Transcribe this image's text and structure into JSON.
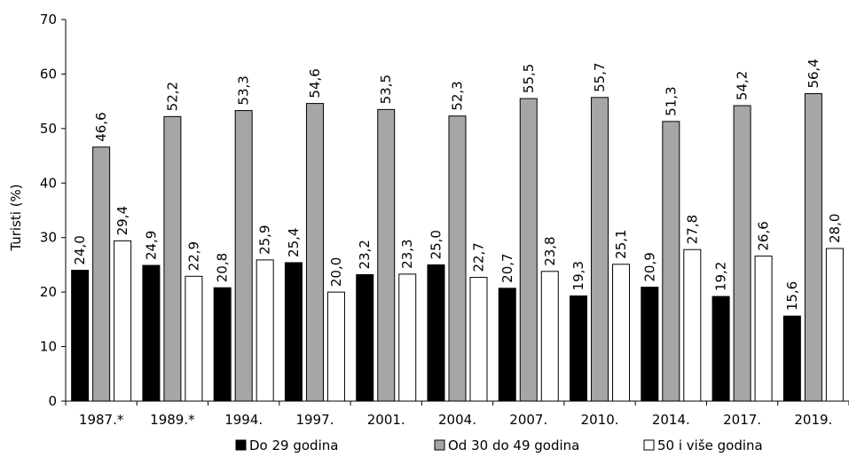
{
  "chart_data": {
    "type": "bar",
    "title": "",
    "xlabel": "",
    "ylabel": "Turisti (%)",
    "ylim": [
      0,
      70
    ],
    "ytick_step": 10,
    "grid": false,
    "legend_position": "bottom",
    "categories": [
      "1987.*",
      "1989.*",
      "1994.",
      "1997.",
      "2001.",
      "2004.",
      "2007.",
      "2010.",
      "2014.",
      "2017.",
      "2019."
    ],
    "series": [
      {
        "name": "Do 29 godina",
        "color": "#000000",
        "values": [
          24.0,
          24.9,
          20.8,
          25.4,
          23.2,
          25.0,
          20.7,
          19.3,
          20.9,
          19.2,
          15.6
        ],
        "labels": [
          "24,0",
          "24,9",
          "20,8",
          "25,4",
          "23,2",
          "25,0",
          "20,7",
          "19,3",
          "20,9",
          "19,2",
          "15,6"
        ]
      },
      {
        "name": "Od 30 do 49 godina",
        "color": "#a6a6a6",
        "values": [
          46.6,
          52.2,
          53.3,
          54.6,
          53.5,
          52.3,
          55.5,
          55.7,
          51.3,
          54.2,
          56.4
        ],
        "labels": [
          "46,6",
          "52,2",
          "53,3",
          "54,6",
          "53,5",
          "52,3",
          "55,5",
          "55,7",
          "51,3",
          "54,2",
          "56,4"
        ]
      },
      {
        "name": "50 i više godina",
        "color": "#ffffff",
        "values": [
          29.4,
          22.9,
          25.9,
          20.0,
          23.3,
          22.7,
          23.8,
          25.1,
          27.8,
          26.6,
          28.0
        ],
        "labels": [
          "29,4",
          "22,9",
          "25,9",
          "20,0",
          "23,3",
          "22,7",
          "23,8",
          "25,1",
          "27,8",
          "26,6",
          "28,0"
        ]
      }
    ]
  }
}
